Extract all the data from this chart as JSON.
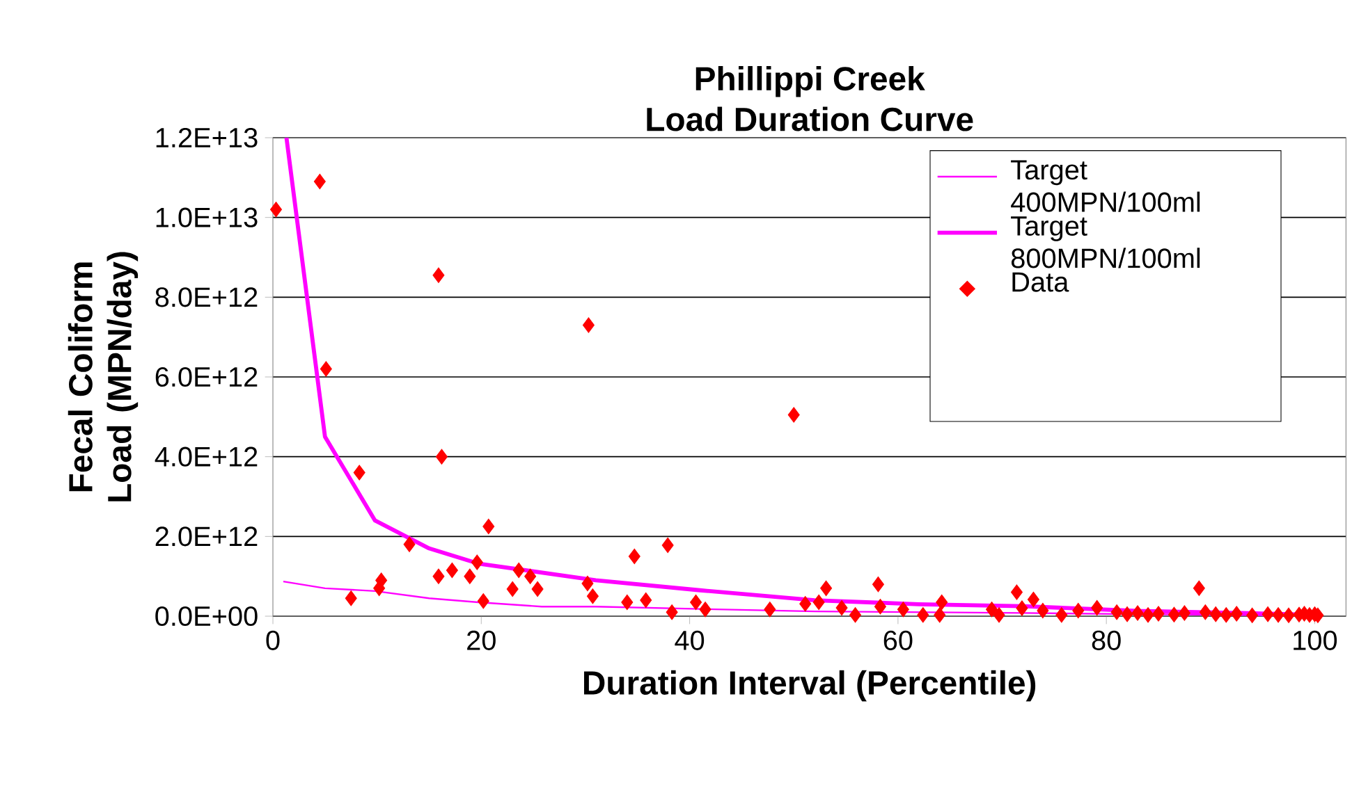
{
  "chart_data": {
    "type": "scatter",
    "title": "Phillippi Creek",
    "subtitle": "Load Duration Curve",
    "xlabel": "Duration Interval (Percentile)",
    "ylabel": "Fecal Coliform Load (MPN/day)",
    "xlim": [
      0,
      103
    ],
    "xticks": [
      0,
      20,
      40,
      60,
      80,
      100
    ],
    "ylim": [
      0,
      12000000000000
    ],
    "yticks": [
      {
        "value": 0,
        "label": "0.0E+00"
      },
      {
        "value": 2000000000000,
        "label": "2.0E+12"
      },
      {
        "value": 4000000000000,
        "label": "4.0E+12"
      },
      {
        "value": 6000000000000,
        "label": "6.0E+12"
      },
      {
        "value": 8000000000000,
        "label": "8.0E+12"
      },
      {
        "value": 10000000000000,
        "label": "1.0E+13"
      },
      {
        "value": 12000000000000,
        "label": "1.2E+13"
      }
    ],
    "grid": "y",
    "legend": "top right",
    "series": [
      {
        "name": "Target 400MPN/100ml",
        "type": "line",
        "color": "#ff00ff",
        "marker": "none",
        "x": [
          1.0,
          5.0,
          9.8,
          15.0,
          19.7,
          25.8,
          31,
          41,
          52,
          62,
          72,
          83,
          93,
          100
        ],
        "values": [
          870000000000,
          700000000000,
          630000000000,
          450000000000,
          350000000000,
          240000000000,
          240000000000,
          180000000000,
          120000000000,
          100000000000,
          80000000000,
          50000000000,
          30000000000,
          10000000000
        ]
      },
      {
        "name": "Target 800MPN/100ml",
        "type": "line",
        "color": "#ff00ff",
        "marker": "none",
        "x": [
          1.3,
          5.0,
          9.8,
          15.0,
          19.7,
          31,
          41,
          52,
          62,
          72,
          83,
          93,
          100
        ],
        "values": [
          12000000000000,
          4500000000000,
          2400000000000,
          1700000000000,
          1320000000000,
          900000000000,
          650000000000,
          400000000000,
          300000000000,
          250000000000,
          130000000000,
          80000000000,
          30000000000
        ]
      },
      {
        "name": "Data",
        "color": "#ff0000",
        "marker": "diamond",
        "x": [
          0.3,
          4.5,
          5.1,
          8.3,
          7.5,
          10.2,
          10.4,
          13.1,
          15.9,
          17.2,
          15.9,
          16.2,
          18.9,
          19.6,
          20.2,
          20.7,
          23.0,
          23.6,
          24.7,
          25.4,
          30.3,
          30.2,
          30.7,
          34.7,
          34.0,
          35.8,
          37.9,
          38.3,
          40.6,
          41.5,
          47.7,
          50.0,
          51.1,
          52.4,
          53.1,
          54.6,
          55.9,
          58.1,
          58.3,
          60.5,
          62.4,
          64.0,
          64.2,
          69.0,
          69.7,
          71.4,
          71.9,
          73.0,
          73.9,
          75.7,
          77.3,
          79.1,
          81,
          82,
          83,
          84,
          85,
          86.5,
          87.5,
          88.9,
          89.5,
          90.5,
          91.5,
          92.5,
          94,
          95.5,
          96.5,
          97.5,
          98.5,
          99,
          99.5,
          100,
          100.3
        ],
        "values": [
          10200000000000,
          10900000000000,
          6200000000000,
          3600000000000,
          450000000000,
          700000000000,
          900000000000,
          1800000000000,
          1000000000000,
          1150000000000,
          8550000000000,
          4000000000000,
          1000000000000,
          1350000000000,
          380000000000,
          2250000000000,
          680000000000,
          1150000000000,
          1000000000000,
          680000000000,
          7300000000000,
          820000000000,
          500000000000,
          1500000000000,
          350000000000,
          400000000000,
          1780000000000,
          100000000000,
          350000000000,
          170000000000,
          170000000000,
          5050000000000,
          310000000000,
          350000000000,
          700000000000,
          210000000000,
          30000000000,
          800000000000,
          240000000000,
          170000000000,
          30000000000,
          30000000000,
          350000000000,
          170000000000,
          30000000000,
          600000000000,
          200000000000,
          420000000000,
          140000000000,
          30000000000,
          140000000000,
          210000000000,
          100000000000,
          50000000000,
          80000000000,
          30000000000,
          60000000000,
          40000000000,
          80000000000,
          700000000000,
          100000000000,
          50000000000,
          30000000000,
          60000000000,
          20000000000,
          50000000000,
          30000000000,
          20000000000,
          40000000000,
          60000000000,
          30000000000,
          50000000000,
          20000000000
        ]
      }
    ]
  }
}
